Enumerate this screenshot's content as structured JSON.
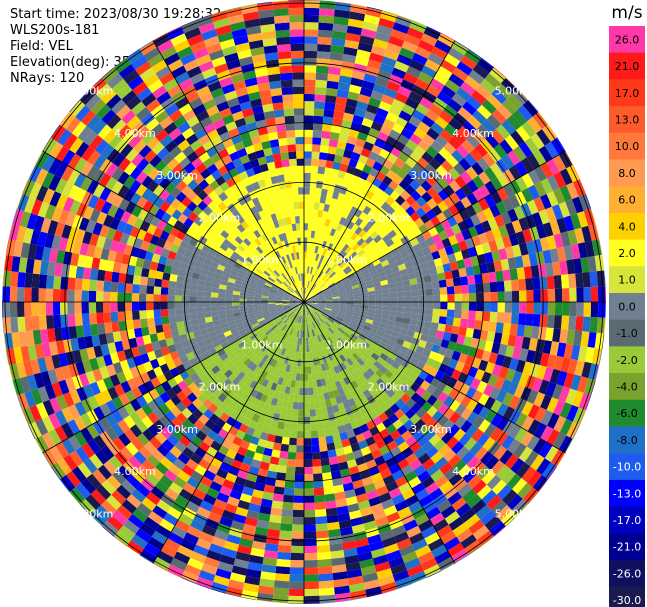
{
  "header": {
    "start_time": "Start time: 2023/08/30 19:28:32",
    "instrument": "WLS200s-181",
    "field": "Field: VEL",
    "elevation": "Elevation(deg): 35.30",
    "nrays": "NRays: 120"
  },
  "chart_data": {
    "type": "heatmap",
    "projection": "polar-ppi",
    "field": "VEL",
    "n_rays": 120,
    "range_rings_km": [
      1,
      2,
      3,
      4,
      5
    ],
    "ring_labels": [
      "1.00km",
      "2.00km",
      "3.00km",
      "4.00km",
      "5.00km"
    ],
    "max_range_km": 5.05,
    "data_valid_range_km": 2.2,
    "dominant_values_ms": {
      "north_sector": 2.5,
      "east_sector": 0.0,
      "south_sector": -2.5,
      "west_sector": 0.0
    },
    "colorbar": {
      "unit": "m/s",
      "ticks": [
        "26.0",
        "21.0",
        "17.0",
        "13.0",
        "10.0",
        "8.0",
        "6.0",
        "4.0",
        "2.0",
        "1.0",
        "0.0",
        "-1.0",
        "-2.0",
        "-4.0",
        "-6.0",
        "-8.0",
        "-10.0",
        "-13.0",
        "-17.0",
        "-21.0",
        "-26.0",
        "-30.0"
      ],
      "colors": [
        "#ff3aa8",
        "#ff1a1a",
        "#ff3a1a",
        "#ff5a2a",
        "#ff7a3a",
        "#ff9a50",
        "#ffb030",
        "#ffd000",
        "#ffff20",
        "#d8e43a",
        "#708090",
        "#5a6a72",
        "#9aca38",
        "#7aa22e",
        "#208a2e",
        "#2070c8",
        "#1e5cf0",
        "#0000ff",
        "#0000c0",
        "#000090",
        "#101060",
        "#1a1a50"
      ]
    }
  }
}
